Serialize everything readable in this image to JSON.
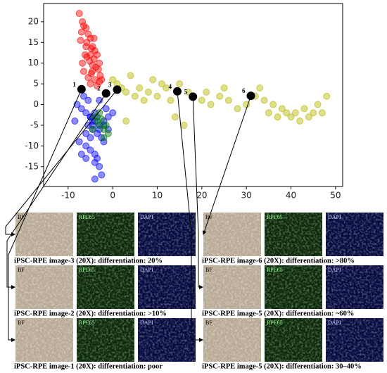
{
  "chart_data": {
    "type": "scatter",
    "xlim": [
      -15.5,
      51.6
    ],
    "ylim": [
      -19.8,
      24.4
    ],
    "xticks": [
      -10,
      0,
      10,
      20,
      30,
      40,
      50
    ],
    "yticks": [
      -15,
      -10,
      -5,
      0,
      5,
      10,
      15,
      20
    ],
    "series": [
      {
        "color": "#ff0000",
        "x": [
          -7.5,
          -6.8,
          -6,
          -5.5,
          -5,
          -4.5,
          -4,
          -3.5,
          -3,
          -6.5,
          -7,
          -5.8,
          -4.8,
          -4.2,
          -3.8,
          -6.2,
          -5.2,
          -4.6,
          -3.2,
          -2.8,
          -5.5,
          -6.5,
          -4,
          -5,
          -3.5,
          -6,
          -4.5,
          -5.8,
          -7.2,
          -3,
          -4.2,
          -5,
          -2.5,
          -6.8,
          -4.8
        ],
        "y": [
          22,
          20,
          18.5,
          17,
          16,
          14,
          13,
          12,
          10,
          19,
          17.5,
          15,
          13.5,
          11,
          9,
          12,
          10.5,
          8,
          8.5,
          7,
          6.5,
          8,
          6,
          5,
          4.5,
          14,
          9.5,
          11.5,
          15.5,
          5.5,
          16,
          12,
          6,
          10,
          7.5
        ]
      },
      {
        "color": "#0000ff",
        "x": [
          -8,
          -7,
          -6,
          -5,
          -4,
          -3,
          -2,
          -1,
          0,
          -6.5,
          -5.5,
          -4.5,
          -3.5,
          -2.5,
          -1.5,
          -7.5,
          -6,
          -5,
          -4,
          -3,
          -5,
          -4,
          -3,
          -2,
          -6,
          -4.5,
          -3.5,
          -5.5,
          -2,
          -1,
          -4,
          -3,
          -2.5,
          -4,
          -3.5,
          -8.5,
          -7,
          -6,
          -5,
          -4.5
        ],
        "y": [
          0,
          -1,
          -2,
          -3,
          -4,
          -5,
          -4,
          -3,
          -2,
          2,
          1,
          -6,
          -7,
          -8,
          -1,
          -9,
          -10,
          -11,
          -12,
          -6,
          -3,
          -2,
          1,
          -5,
          -7,
          -4,
          -3,
          -5,
          -9,
          -6,
          -14,
          -15,
          -17,
          -18,
          -13,
          -4,
          -12,
          -13,
          -8,
          -5
        ]
      },
      {
        "color": "#008000",
        "x": [
          -4,
          -3,
          -2,
          -1,
          -3.5,
          -2.5,
          -1.5,
          -4.5,
          -2,
          -3
        ],
        "y": [
          -3,
          -5,
          -6,
          -7,
          -4,
          -3.5,
          -5,
          -6,
          -8,
          -2
        ]
      },
      {
        "color": "#b5b500",
        "x": [
          0,
          1,
          2,
          3,
          4,
          5,
          6,
          7,
          8,
          9,
          10,
          11,
          12,
          13,
          15,
          16,
          17,
          18,
          20,
          21,
          22,
          24,
          25,
          26,
          28,
          30,
          32,
          33,
          34,
          35,
          36,
          37,
          38,
          39,
          40,
          41,
          42,
          43,
          44,
          45,
          46,
          47,
          48,
          3,
          14
        ],
        "y": [
          6,
          5,
          4,
          3,
          7,
          2,
          4,
          1,
          3,
          6,
          2,
          5,
          4,
          1,
          5,
          -5,
          3,
          2,
          1,
          3,
          0,
          2,
          4,
          1,
          -1,
          0,
          2,
          4,
          1,
          -2,
          0,
          -3,
          -1,
          -2,
          -3,
          -2,
          -4,
          -1,
          -3,
          -2,
          0,
          -2,
          2,
          -4,
          -3
        ]
      },
      {
        "color": "#000000",
        "x": [
          -7,
          -1.5,
          1,
          14.5,
          18,
          31
        ],
        "y": [
          3.7,
          2.7,
          3.6,
          3.2,
          1.9,
          2.1
        ],
        "labels": [
          "1",
          "2",
          "3",
          "4",
          "5",
          "6"
        ]
      }
    ]
  },
  "panels": [
    {
      "caption": "iPSC-RPE image-3 (20X): differentiation: 20%",
      "images": [
        "BF",
        "RPE65",
        "DAPI"
      ]
    },
    {
      "caption": "iPSC-RPE image-2 (20X): differentiation: >10%",
      "images": [
        "BF",
        "RPE65",
        "DAPI"
      ]
    },
    {
      "caption": "iPSC-RPE image-1 (20X): differentiation: poor",
      "images": [
        "BF",
        "RPE65",
        "DAPI"
      ]
    },
    {
      "caption": "iPSC-RPE image-6 (20X): differentiation: >80%",
      "images": [
        "BF",
        "RPE65",
        "DAPI"
      ]
    },
    {
      "caption": "iPSC-RPE image-5 (20X): differentiation: ~60%",
      "images": [
        "BF",
        "RPE65",
        "DAPI"
      ]
    },
    {
      "caption": "iPSC-RPE image-5 (20X): differentiation: 30–40%",
      "images": [
        "BF",
        "RPE65",
        "DAPI"
      ]
    }
  ]
}
